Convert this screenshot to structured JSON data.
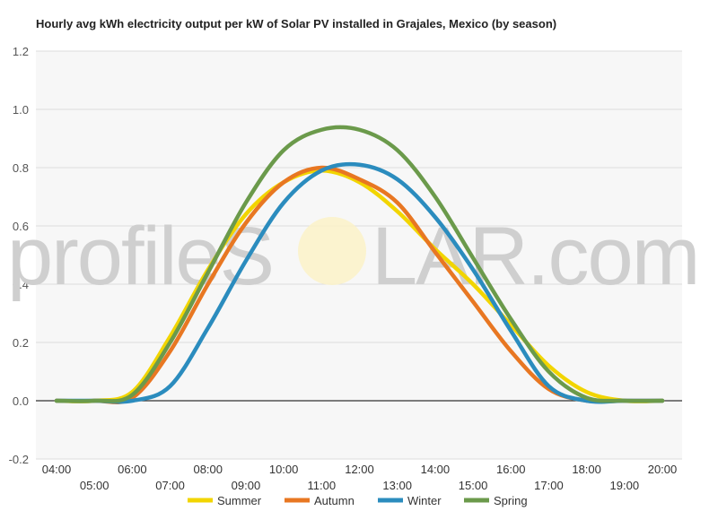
{
  "chart_data": {
    "type": "line",
    "title": "Hourly avg kWh electricity output per kW of Solar PV installed in Grajales, Mexico (by season)",
    "xlabel": "",
    "ylabel": "",
    "ylim": [
      -0.2,
      1.2
    ],
    "y_ticks": [
      "-0.2",
      "0.0",
      "0.2",
      "0.4",
      "0.6",
      "0.8",
      "1.0",
      "1.2"
    ],
    "categories": [
      "04:00",
      "05:00",
      "06:00",
      "07:00",
      "08:00",
      "09:00",
      "10:00",
      "11:00",
      "12:00",
      "13:00",
      "14:00",
      "15:00",
      "16:00",
      "17:00",
      "18:00",
      "19:00",
      "20:00"
    ],
    "grid": true,
    "legend_position": "bottom",
    "series": [
      {
        "name": "Summer",
        "color": "#f2d500",
        "values": [
          0.0,
          0.0,
          0.03,
          0.22,
          0.45,
          0.64,
          0.75,
          0.79,
          0.75,
          0.65,
          0.52,
          0.4,
          0.26,
          0.12,
          0.03,
          0.0,
          0.0
        ]
      },
      {
        "name": "Autumn",
        "color": "#e87722",
        "values": [
          0.0,
          0.0,
          0.01,
          0.17,
          0.4,
          0.61,
          0.75,
          0.8,
          0.76,
          0.68,
          0.51,
          0.34,
          0.17,
          0.04,
          0.0,
          0.0,
          0.0
        ]
      },
      {
        "name": "Winter",
        "color": "#2b8cbe",
        "values": [
          0.0,
          0.0,
          0.0,
          0.05,
          0.25,
          0.48,
          0.68,
          0.79,
          0.81,
          0.76,
          0.63,
          0.45,
          0.24,
          0.05,
          0.0,
          0.0,
          0.0
        ]
      },
      {
        "name": "Spring",
        "color": "#6b9a4b",
        "values": [
          0.0,
          0.0,
          0.02,
          0.2,
          0.44,
          0.68,
          0.86,
          0.93,
          0.93,
          0.86,
          0.7,
          0.49,
          0.28,
          0.1,
          0.01,
          0.0,
          0.0
        ]
      }
    ]
  },
  "watermark": {
    "text_left": "profileS",
    "text_right": "LAR.com"
  }
}
